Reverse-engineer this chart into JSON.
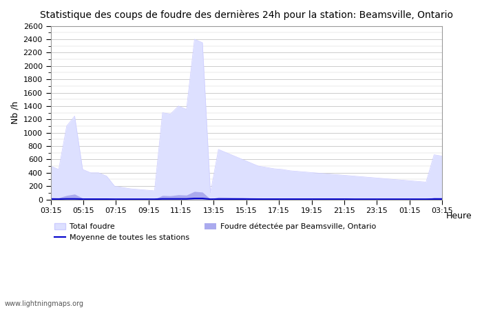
{
  "title": "Statistique des coups de foudre des dernières 24h pour la station: Beamsville, Ontario",
  "ylabel": "Nb /h",
  "xlabel": "Heure",
  "watermark": "www.lightningmaps.org",
  "legend": {
    "total_foudre_label": "Total foudre",
    "moyenne_label": "Moyenne de toutes les stations",
    "beamsville_label": "Foudre détectée par Beamsville, Ontario"
  },
  "x_ticks": [
    "03:15",
    "05:15",
    "07:15",
    "09:15",
    "11:15",
    "13:15",
    "15:15",
    "17:15",
    "19:15",
    "21:15",
    "23:15",
    "01:15",
    "03:15"
  ],
  "ylim": [
    0,
    2600
  ],
  "yticks": [
    0,
    200,
    400,
    600,
    800,
    1000,
    1200,
    1400,
    1600,
    1800,
    2000,
    2200,
    2400,
    2600
  ],
  "background_color": "#ffffff",
  "plot_bg_color": "#ffffff",
  "grid_color": "#cccccc",
  "total_fill_color": "#ccccff",
  "total_fill_color_light": "#dde0ff",
  "beams_fill_color": "#aaaaee",
  "moyenne_color": "#0000cc",
  "total_data": [
    500,
    450,
    1100,
    1250,
    450,
    400,
    400,
    350,
    200,
    180,
    160,
    150,
    140,
    130,
    1300,
    1280,
    1400,
    1350,
    2400,
    2350,
    100,
    750,
    700,
    650,
    600,
    550,
    500,
    480,
    460,
    450,
    430,
    420,
    410,
    400,
    390,
    380,
    370,
    360,
    350,
    340,
    330,
    320,
    310,
    300,
    290,
    280,
    270,
    260,
    670,
    650
  ],
  "beams_data": [
    30,
    25,
    60,
    80,
    20,
    18,
    17,
    16,
    10,
    8,
    7,
    6,
    5,
    4,
    60,
    55,
    70,
    65,
    120,
    110,
    5,
    35,
    33,
    30,
    28,
    25,
    22,
    20,
    18,
    17,
    16,
    15,
    14,
    13,
    12,
    11,
    10,
    9,
    8,
    7,
    6,
    5,
    4,
    3,
    2,
    2,
    2,
    2,
    30,
    28
  ],
  "moyenne_data": [
    5,
    5,
    8,
    8,
    5,
    5,
    5,
    5,
    4,
    4,
    4,
    4,
    4,
    4,
    8,
    8,
    8,
    8,
    15,
    15,
    4,
    6,
    6,
    6,
    6,
    5,
    5,
    5,
    5,
    5,
    5,
    5,
    5,
    5,
    5,
    5,
    5,
    5,
    4,
    4,
    4,
    4,
    4,
    4,
    4,
    4,
    4,
    4,
    6,
    6
  ],
  "n_points": 50
}
